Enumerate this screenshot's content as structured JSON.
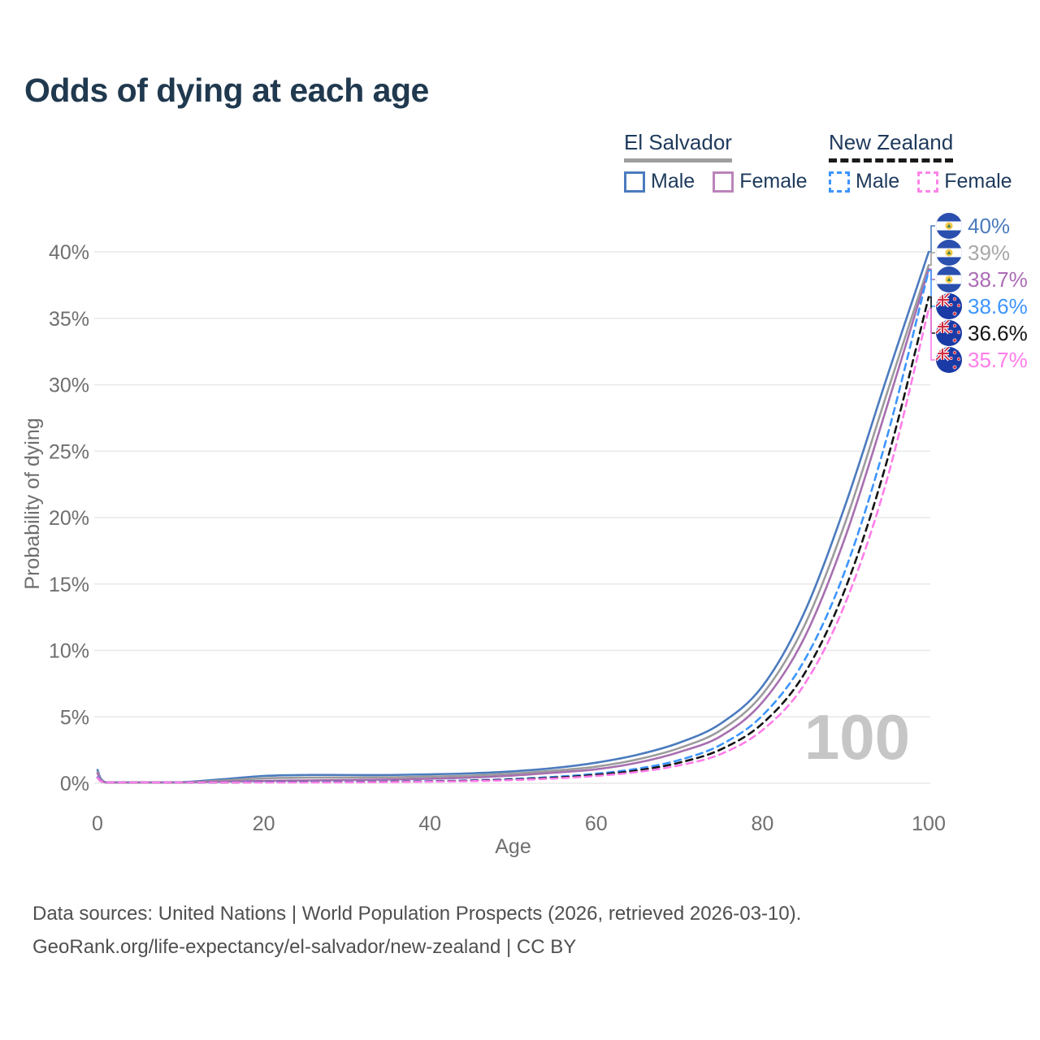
{
  "title": "Odds of dying at each age",
  "watermark": "100",
  "legend": {
    "groups": [
      {
        "name": "El Salvador",
        "line_style": "solid",
        "underline_color": "#9e9e9e",
        "items": [
          {
            "label": "Male",
            "color": "#4b7bbe",
            "dashed": false
          },
          {
            "label": "Female",
            "color": "#bb84ba",
            "dashed": false
          }
        ]
      },
      {
        "name": "New Zealand",
        "line_style": "dashed",
        "underline_color": "#1a1a1a",
        "items": [
          {
            "label": "Male",
            "color": "#3d95ff",
            "dashed": true
          },
          {
            "label": "Female",
            "color": "#ff85e8",
            "dashed": true
          }
        ]
      }
    ]
  },
  "chart_data": {
    "type": "line",
    "title": "Odds of dying at each age",
    "xlabel": "Age",
    "ylabel": "Probability of dying",
    "xlim": [
      0,
      100
    ],
    "ylim": [
      0,
      40
    ],
    "grid": "horizontal",
    "xticks": [
      0,
      20,
      40,
      60,
      80,
      100
    ],
    "yticks": [
      {
        "value": 0,
        "label": "0%"
      },
      {
        "value": 5,
        "label": "5%"
      },
      {
        "value": 10,
        "label": "10%"
      },
      {
        "value": 15,
        "label": "15%"
      },
      {
        "value": 20,
        "label": "20%"
      },
      {
        "value": 25,
        "label": "25%"
      },
      {
        "value": 30,
        "label": "30%"
      },
      {
        "value": 35,
        "label": "35%"
      },
      {
        "value": 40,
        "label": "40%"
      }
    ],
    "ages": [
      0,
      1,
      5,
      10,
      15,
      20,
      25,
      30,
      35,
      40,
      45,
      50,
      55,
      60,
      65,
      70,
      75,
      80,
      85,
      90,
      95,
      100
    ],
    "series": [
      {
        "name": "El Salvador Male",
        "country": "El Salvador",
        "sex": "Male",
        "flag": "el-salvador",
        "color": "#4b7bbe",
        "dash": "solid",
        "end_label": "40%",
        "end_label_color": "#4b7bbe",
        "values": [
          1.0,
          0.07,
          0.05,
          0.07,
          0.3,
          0.55,
          0.62,
          0.62,
          0.62,
          0.67,
          0.75,
          0.9,
          1.15,
          1.55,
          2.15,
          3.05,
          4.5,
          7.3,
          12.8,
          21.0,
          30.6,
          40.0
        ]
      },
      {
        "name": "El Salvador Both Sexes",
        "country": "El Salvador",
        "sex": "Both",
        "flag": "el-salvador",
        "color": "#9c9c9c",
        "dash": "solid",
        "end_label": "39%",
        "end_label_color": "#a8a8a8",
        "values": [
          0.85,
          0.06,
          0.04,
          0.06,
          0.2,
          0.37,
          0.42,
          0.43,
          0.45,
          0.5,
          0.58,
          0.73,
          0.95,
          1.25,
          1.8,
          2.65,
          4.0,
          6.7,
          11.8,
          19.7,
          29.4,
          39.0
        ]
      },
      {
        "name": "El Salvador Female",
        "country": "El Salvador",
        "sex": "Female",
        "flag": "el-salvador",
        "color": "#a76fb0",
        "dash": "solid",
        "end_label": "38.7%",
        "end_label_color": "#ab6cb4",
        "values": [
          0.75,
          0.05,
          0.04,
          0.05,
          0.12,
          0.18,
          0.21,
          0.24,
          0.28,
          0.34,
          0.43,
          0.58,
          0.8,
          1.05,
          1.55,
          2.35,
          3.55,
          6.1,
          10.9,
          18.6,
          28.4,
          38.7
        ]
      },
      {
        "name": "New Zealand Male",
        "country": "New Zealand",
        "sex": "Male",
        "flag": "new-zealand",
        "color": "#3d95ff",
        "dash": "dashed",
        "end_label": "38.6%",
        "end_label_color": "#3d95ff",
        "values": [
          0.45,
          0.03,
          0.02,
          0.03,
          0.07,
          0.1,
          0.1,
          0.11,
          0.13,
          0.16,
          0.22,
          0.32,
          0.48,
          0.72,
          1.1,
          1.75,
          2.9,
          5.1,
          9.2,
          16.1,
          26.1,
          38.6
        ]
      },
      {
        "name": "New Zealand Both Sexes",
        "country": "New Zealand",
        "sex": "Both",
        "flag": "new-zealand",
        "color": "#141414",
        "dash": "dashed",
        "end_label": "36.6%",
        "end_label_color": "#141414",
        "values": [
          0.4,
          0.03,
          0.02,
          0.02,
          0.05,
          0.08,
          0.08,
          0.09,
          0.11,
          0.14,
          0.19,
          0.28,
          0.42,
          0.63,
          0.97,
          1.55,
          2.55,
          4.5,
          8.2,
          14.7,
          24.3,
          36.6
        ]
      },
      {
        "name": "New Zealand Female",
        "country": "New Zealand",
        "sex": "Female",
        "flag": "new-zealand",
        "color": "#ff7dea",
        "dash": "dashed",
        "end_label": "35.7%",
        "end_label_color": "#ff7dea",
        "values": [
          0.4,
          0.02,
          0.01,
          0.02,
          0.04,
          0.05,
          0.06,
          0.07,
          0.09,
          0.12,
          0.16,
          0.24,
          0.36,
          0.55,
          0.85,
          1.35,
          2.2,
          4.0,
          7.4,
          13.6,
          22.9,
          35.7
        ]
      }
    ]
  },
  "footer": {
    "line1": "Data sources: United Nations | World Population Prospects (2026, retrieved 2026-03-10).",
    "line2": "GeoRank.org/life-expectancy/el-salvador/new-zealand | CC BY"
  }
}
